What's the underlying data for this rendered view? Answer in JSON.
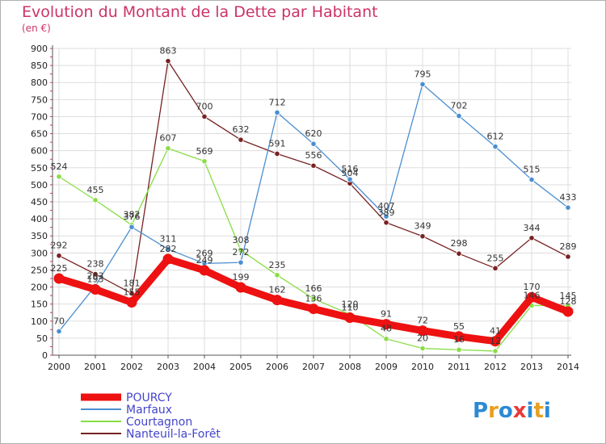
{
  "title": "Evolution du Montant de la Dette par Habitant",
  "unit": "(en €)",
  "logo": "Proxiti",
  "chart_data": {
    "type": "line",
    "title": "Evolution du Montant de la Dette par Habitant",
    "ylabel": "(en €)",
    "ylim": [
      0,
      900
    ],
    "yticks": [
      0,
      50,
      100,
      150,
      200,
      250,
      300,
      350,
      400,
      450,
      500,
      550,
      600,
      650,
      700,
      750,
      800,
      850,
      900
    ],
    "x": [
      "2000",
      "2001",
      "2002",
      "2003",
      "2004",
      "2005",
      "2006",
      "2007",
      "2008",
      "2009",
      "2010",
      "2011",
      "2012",
      "2013",
      "2014"
    ],
    "grid": true,
    "legend": "bottom-left",
    "series": [
      {
        "name": "POURCY",
        "color": "#ee1111",
        "values": [
          225,
          193,
          155,
          282,
          249,
          199,
          162,
          136,
          110,
          91,
          72,
          55,
          41,
          170,
          128
        ]
      },
      {
        "name": "Marfaux",
        "color": "#4a8ed0",
        "values": [
          70,
          203,
          376,
          311,
          269,
          272,
          712,
          620,
          516,
          407,
          795,
          702,
          612,
          515,
          433
        ]
      },
      {
        "name": "Courtagnon",
        "color": "#88dd44",
        "values": [
          524,
          455,
          382,
          607,
          569,
          308,
          235,
          166,
          120,
          48,
          20,
          16,
          12,
          146,
          145
        ]
      },
      {
        "name": "Nanteuil-la-Forêt",
        "color": "#772222",
        "values": [
          292,
          238,
          181,
          863,
          700,
          632,
          591,
          556,
          504,
          389,
          349,
          298,
          255,
          344,
          289
        ]
      }
    ]
  }
}
